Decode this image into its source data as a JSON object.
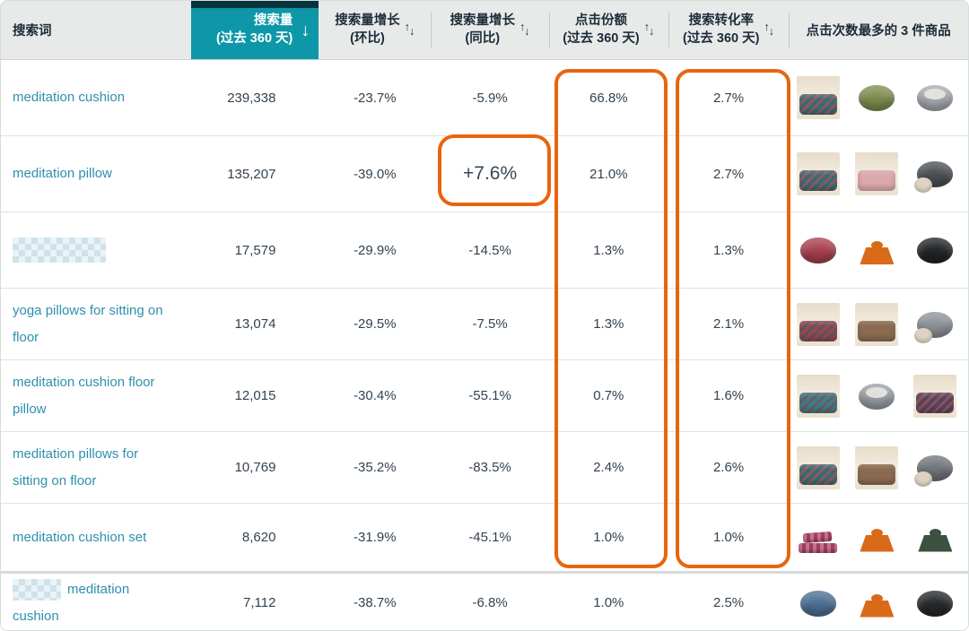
{
  "theme": {
    "teal": "#0d97a8",
    "teal_dark_bar": "#06343d",
    "header_bg": "#e8eaea",
    "header_text": "#1d2b38",
    "link": "#2e8fad",
    "value_text": "#33424f",
    "annotation": "#e8650f",
    "divider": "#dfe3e3"
  },
  "header": {
    "columns": [
      {
        "id": "term",
        "label": "搜索词"
      },
      {
        "id": "volume",
        "label": "搜索量",
        "sub": "(过去 360 天)",
        "sort": "desc",
        "selected": true
      },
      {
        "id": "growth_qoq",
        "label": "搜索量增长",
        "sub": "(环比)",
        "sortable": true
      },
      {
        "id": "growth_yoy",
        "label": "搜索量增长",
        "sub": "(同比)",
        "sortable": true
      },
      {
        "id": "click_share",
        "label": "点击份额",
        "sub": "(过去 360 天)",
        "sortable": true
      },
      {
        "id": "conversion",
        "label": "搜索转化率",
        "sub": "(过去 360 天)",
        "sortable": true
      },
      {
        "id": "products",
        "label": "点击次数最多的 3 件商品"
      }
    ]
  },
  "rows": [
    {
      "term": "meditation cushion",
      "redacted": "none",
      "volume": "239,338",
      "growth_qoq": "-23.7%",
      "growth_yoy": "-5.9%",
      "yoy_highlight": false,
      "click_share": "66.8%",
      "conversion": "2.7%",
      "products": [
        {
          "shape": "scene-square",
          "color": "#356b76",
          "accent": "#c0504d",
          "desc": "multicolor patterned floor cushion"
        },
        {
          "shape": "round",
          "color": "#7f8d4e",
          "desc": "olive green round zafu cushion"
        },
        {
          "shape": "round",
          "color": "#a7abb0",
          "accent": "#e9e7e1",
          "desc": "gray round zafu with mandala top"
        }
      ]
    },
    {
      "term": "meditation pillow",
      "redacted": "none",
      "volume": "135,207",
      "growth_qoq": "-39.0%",
      "growth_yoy": "+7.6%",
      "yoy_highlight": true,
      "click_share": "21.0%",
      "conversion": "2.7%",
      "products": [
        {
          "shape": "scene-square",
          "color": "#356b76",
          "accent": "#c0504d",
          "desc": "multicolor patterned floor cushion"
        },
        {
          "shape": "scene-square",
          "color": "#dba8ab",
          "desc": "pink tufted floor cushion"
        },
        {
          "shape": "round-duo",
          "color": "#4b5055",
          "accent": "#ded3c2",
          "desc": "dark gray zafu with beige cushion"
        }
      ]
    },
    {
      "term": "",
      "redacted": "full",
      "volume": "17,579",
      "growth_qoq": "-29.9%",
      "growth_yoy": "-14.5%",
      "yoy_highlight": false,
      "click_share": "1.3%",
      "conversion": "1.3%",
      "products": [
        {
          "shape": "round",
          "color": "#a8404e",
          "desc": "maroon round zafu cushion"
        },
        {
          "shape": "trapezoid",
          "color": "#d96a17",
          "desc": "orange crescent meditation cushion"
        },
        {
          "shape": "round",
          "color": "#222426",
          "desc": "black round zafu cushion"
        }
      ]
    },
    {
      "term": "yoga pillows for sitting on floor",
      "redacted": "none",
      "volume": "13,074",
      "growth_qoq": "-29.5%",
      "growth_yoy": "-7.5%",
      "yoy_highlight": false,
      "click_share": "1.3%",
      "conversion": "2.1%",
      "products": [
        {
          "shape": "scene-square",
          "color": "#99474f",
          "accent": "#3f5a66",
          "desc": "red patterned tufted floor cushion"
        },
        {
          "shape": "scene-square",
          "color": "#8a6a50",
          "desc": "brown tufted floor cushion"
        },
        {
          "shape": "round-duo",
          "color": "#8e9398",
          "accent": "#ded3c2",
          "desc": "gray zafu with beige cushion"
        }
      ]
    },
    {
      "term": "meditation cushion floor pillow",
      "redacted": "none",
      "volume": "12,015",
      "growth_qoq": "-30.4%",
      "growth_yoy": "-55.1%",
      "yoy_highlight": false,
      "click_share": "0.7%",
      "conversion": "1.6%",
      "products": [
        {
          "shape": "scene-square",
          "color": "#3f7d80",
          "accent": "#7a4a66",
          "desc": "teal patterned floor cushion"
        },
        {
          "shape": "round",
          "color": "#9aa0a6",
          "accent": "#e9e7e1",
          "desc": "gray round zafu with mandala top"
        },
        {
          "shape": "scene-square",
          "color": "#50455f",
          "accent": "#b05555",
          "desc": "dark patterned floor cushion"
        }
      ]
    },
    {
      "term": "meditation pillows for sitting on floor",
      "redacted": "none",
      "volume": "10,769",
      "growth_qoq": "-35.2%",
      "growth_yoy": "-83.5%",
      "yoy_highlight": false,
      "click_share": "2.4%",
      "conversion": "2.6%",
      "products": [
        {
          "shape": "scene-square",
          "color": "#356b76",
          "accent": "#c0504d",
          "desc": "multicolor patterned floor cushion"
        },
        {
          "shape": "scene-square",
          "color": "#8a6a50",
          "desc": "brown tufted floor cushion"
        },
        {
          "shape": "round-duo",
          "color": "#71767b",
          "accent": "#ded3c2",
          "desc": "gray zafu with beige cushion"
        }
      ]
    },
    {
      "term": "meditation cushion set",
      "redacted": "none",
      "volume": "8,620",
      "growth_qoq": "-31.9%",
      "growth_yoy": "-45.1%",
      "yoy_highlight": false,
      "click_share": "1.0%",
      "conversion": "1.0%",
      "products": [
        {
          "shape": "folded",
          "color": "#9e3f5c",
          "accent": "#d98aa3",
          "desc": "maroon folded cushion set"
        },
        {
          "shape": "trapezoid",
          "color": "#d96a17",
          "desc": "orange crescent meditation cushion"
        },
        {
          "shape": "trapezoid",
          "color": "#3c5140",
          "desc": "dark green crescent meditation cushion"
        }
      ]
    },
    {
      "term": "meditation cushion",
      "redacted": "prefix",
      "volume": "7,112",
      "growth_qoq": "-38.7%",
      "growth_yoy": "-6.8%",
      "yoy_highlight": false,
      "click_share": "1.0%",
      "conversion": "2.5%",
      "products": [
        {
          "shape": "round",
          "color": "#4d6f94",
          "desc": "blue round zafu cushion"
        },
        {
          "shape": "trapezoid",
          "color": "#d96a17",
          "desc": "orange crescent meditation cushion"
        },
        {
          "shape": "round",
          "color": "#26282a",
          "desc": "black round zafu cushion"
        }
      ]
    }
  ],
  "annotations": {
    "color": "#e8650f",
    "boxes": [
      "click-share-column",
      "conversion-column",
      "yoy-growth-cell-row-2"
    ]
  }
}
